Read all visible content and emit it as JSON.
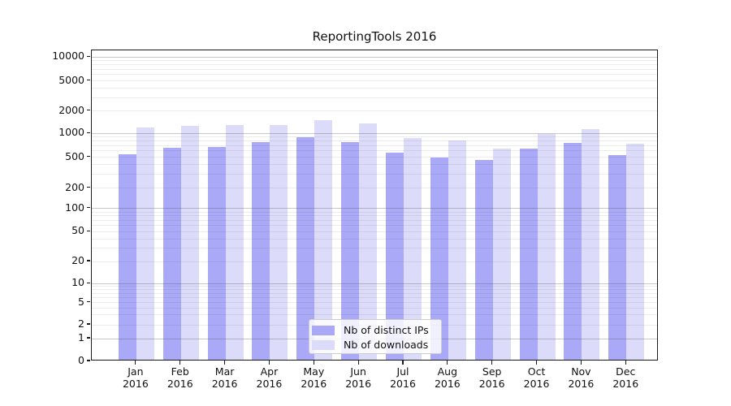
{
  "chart_data": {
    "type": "bar",
    "title": "ReportingTools 2016",
    "categories": [
      "Jan 2016",
      "Feb 2016",
      "Mar 2016",
      "Apr 2016",
      "May 2016",
      "Jun 2016",
      "Jul 2016",
      "Aug 2016",
      "Sep 2016",
      "Oct 2016",
      "Nov 2016",
      "Dec 2016"
    ],
    "series": [
      {
        "name": "Nb of distinct IPs",
        "color": "#a9a9f7",
        "values": [
          520,
          630,
          640,
          740,
          850,
          750,
          540,
          470,
          440,
          610,
          730,
          510
        ]
      },
      {
        "name": "Nb of downloads",
        "color": "#dcdcfa",
        "values": [
          1130,
          1210,
          1240,
          1230,
          1420,
          1300,
          840,
          770,
          620,
          940,
          1090,
          700
        ]
      }
    ],
    "xlabel": "",
    "ylabel": "",
    "yscale": "symlog",
    "yticks": [
      0,
      1,
      2,
      5,
      10,
      20,
      50,
      100,
      200,
      500,
      1000,
      2000,
      5000,
      10000
    ],
    "ylim": [
      0,
      12500
    ],
    "grid": "on",
    "legend_position": "lower center"
  }
}
